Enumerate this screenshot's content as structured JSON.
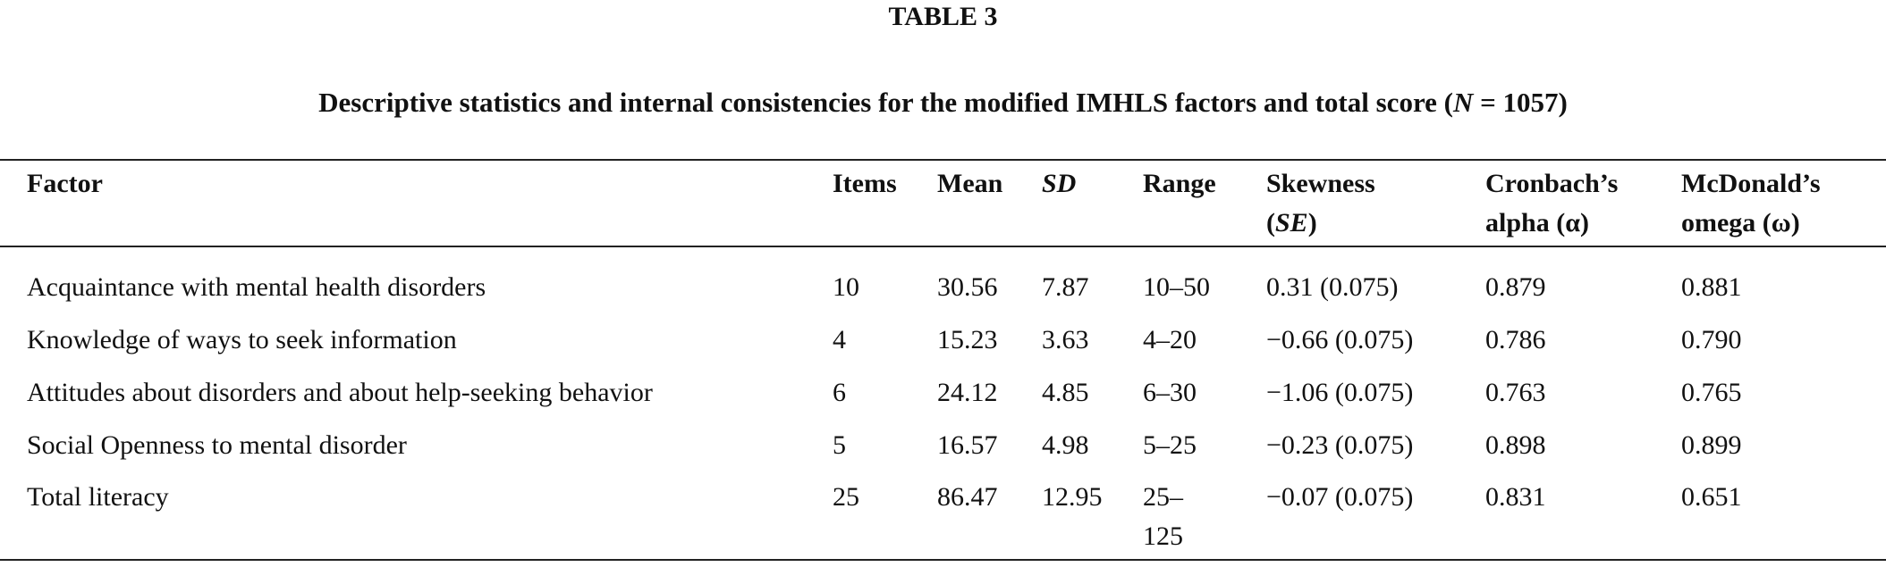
{
  "title": "TABLE 3",
  "caption": {
    "before": "Descriptive statistics and internal consistencies for the modified IMHLS factors and total score (",
    "italic": "N",
    "after": " = 1057)"
  },
  "table": {
    "headers": [
      [
        [
          {
            "text": "Factor",
            "italic": false
          }
        ]
      ],
      [
        [
          {
            "text": "Items",
            "italic": false
          }
        ]
      ],
      [
        [
          {
            "text": "Mean",
            "italic": false
          }
        ]
      ],
      [
        [
          {
            "text": "SD",
            "italic": true
          }
        ]
      ],
      [
        [
          {
            "text": "Range",
            "italic": false
          }
        ]
      ],
      [
        [
          {
            "text": "Skewness",
            "italic": false
          }
        ],
        [
          {
            "text": "(",
            "italic": false
          },
          {
            "text": "SE",
            "italic": true
          },
          {
            "text": ")",
            "italic": false
          }
        ]
      ],
      [
        [
          {
            "text": "Cronbach’s",
            "italic": false
          }
        ],
        [
          {
            "text": "alpha (α)",
            "italic": false
          }
        ]
      ],
      [
        [
          {
            "text": "McDonald’s",
            "italic": false
          }
        ],
        [
          {
            "text": "omega (ω)",
            "italic": false
          }
        ]
      ]
    ],
    "rows": [
      [
        "Acquaintance with mental health disorders",
        "10",
        "30.56",
        "7.87",
        "10–50",
        "0.31 (0.075)",
        "0.879",
        "0.881"
      ],
      [
        "Knowledge of ways to seek information",
        "4",
        "15.23",
        "3.63",
        "4–20",
        "−0.66 (0.075)",
        "0.786",
        "0.790"
      ],
      [
        "Attitudes about disorders and about help-seeking behavior",
        "6",
        "24.12",
        "4.85",
        "6–30",
        "−1.06 (0.075)",
        "0.763",
        "0.765"
      ],
      [
        "Social Openness to mental disorder",
        "5",
        "16.57",
        "4.98",
        "5–25",
        "−0.23 (0.075)",
        "0.898",
        "0.899"
      ],
      [
        "Total literacy",
        "25",
        "86.47",
        "12.95",
        "25–125",
        "−0.07 (0.075)",
        "0.831",
        "0.651"
      ]
    ]
  }
}
